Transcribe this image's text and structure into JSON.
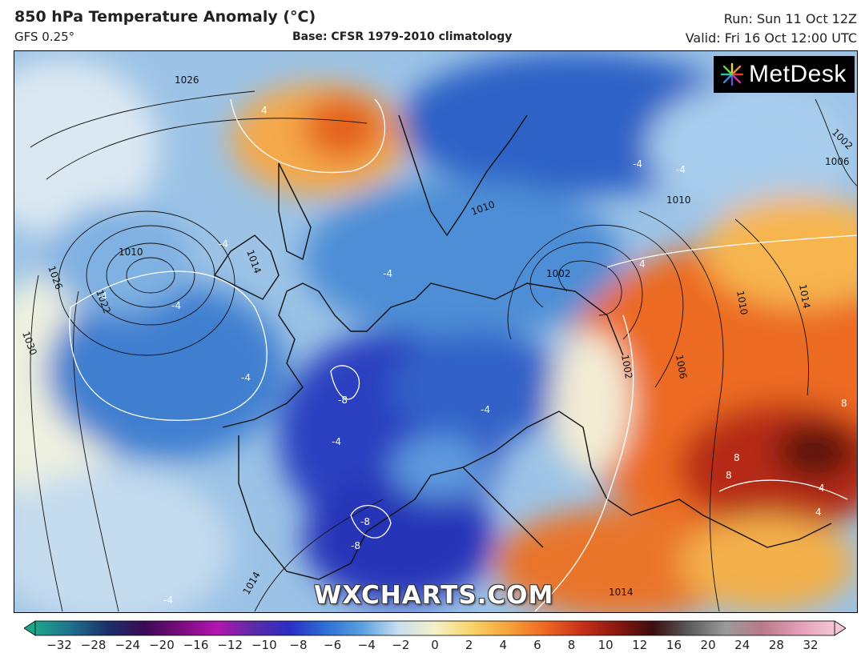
{
  "header": {
    "title": "850 hPa Temperature Anomaly (°C)",
    "model": "GFS 0.25°",
    "base": "Base: CFSR 1979-2010 climatology",
    "run": "Run: Sun 11 Oct 12Z",
    "valid": "Valid: Fri 16 Oct 12:00 UTC"
  },
  "logo": {
    "text": "MetDesk",
    "icon": "starburst-icon"
  },
  "watermark": "WXCHARTS.COM",
  "isobar_labels": [
    "1026",
    "1010",
    "1026",
    "1022",
    "1030",
    "1014",
    "1010",
    "1002",
    "1002",
    "1006",
    "1010",
    "1010",
    "1014",
    "1006",
    "1002",
    "1014",
    "1014"
  ],
  "anomaly_labels": [
    "4",
    "-4",
    "-4",
    "-4",
    "-4",
    "-4",
    "-4",
    "-8",
    "-4",
    "-4",
    "-8",
    "-8",
    "-4",
    "8",
    "8",
    "4",
    "4",
    "4",
    "-4",
    "8"
  ],
  "colorbar": {
    "ticks": [
      "−32",
      "−28",
      "−24",
      "−20",
      "−16",
      "−12",
      "−10",
      "−8",
      "−6",
      "−4",
      "−2",
      "0",
      "2",
      "4",
      "6",
      "8",
      "10",
      "12",
      "16",
      "20",
      "24",
      "28",
      "32"
    ],
    "colors": [
      "#1fa58a",
      "#1f6f8c",
      "#1b2f6a",
      "#3a0a55",
      "#7b0b7e",
      "#b216b0",
      "#5d2ba6",
      "#2b2ec4",
      "#2f6fd6",
      "#5aa0de",
      "#c9dff0",
      "#f4f1c8",
      "#f9d46a",
      "#f6a43a",
      "#ee6a22",
      "#c9321a",
      "#8c1610",
      "#3b0e0e",
      "#5c5c5c",
      "#9a9a9a",
      "#b97a8a",
      "#e39cb6",
      "#f4c6d6"
    ]
  }
}
